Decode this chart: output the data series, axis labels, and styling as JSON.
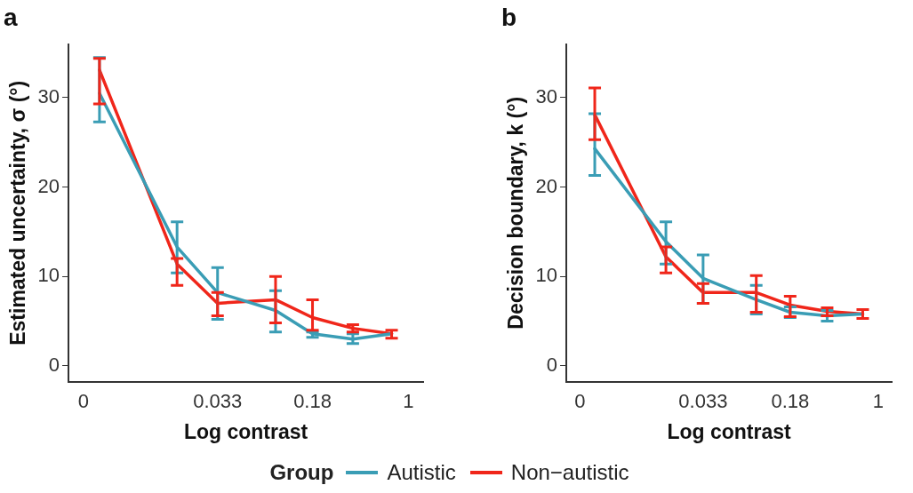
{
  "chart_data": [
    {
      "type": "line",
      "title": "a",
      "xlabel": "Log contrast",
      "ylabel": "Estimated uncertainty, σ (°)",
      "log": "x",
      "xlim": [
        0.0023,
        1.3
      ],
      "xticks": [
        {
          "value": 0.003,
          "label": "0"
        },
        0.033,
        0.18,
        1
      ],
      "ylim": [
        -1.8,
        36
      ],
      "yticks": [
        0,
        10,
        20,
        30
      ],
      "grid": false,
      "marker": "none",
      "line_style": "solid",
      "legend": "bottom",
      "legend_title": "Group",
      "x": [
        0.004,
        0.016,
        0.033,
        0.093,
        0.18,
        0.37,
        0.74
      ],
      "series": [
        {
          "name": "Autistic",
          "color": "#3a9db5",
          "values": [
            30.5,
            13.3,
            8.2,
            6.2,
            3.6,
            3.0,
            3.6
          ],
          "errors": [
            [
              27.3,
              34.5
            ],
            [
              10.4,
              16.1
            ],
            [
              5.2,
              11.0
            ],
            [
              3.8,
              8.4
            ],
            [
              3.2,
              3.8
            ],
            [
              2.5,
              3.6
            ],
            null
          ]
        },
        {
          "name": "Non−autistic",
          "color": "#f0261a",
          "values": [
            33.1,
            11.4,
            7.0,
            7.4,
            5.4,
            4.2,
            3.6
          ],
          "errors": [
            [
              29.3,
              34.4
            ],
            [
              9.0,
              12.0
            ],
            [
              5.6,
              8.2
            ],
            [
              4.8,
              10.0
            ],
            [
              4.0,
              7.4
            ],
            [
              3.8,
              4.6
            ],
            [
              3.1,
              4.0
            ]
          ]
        }
      ]
    },
    {
      "type": "line",
      "title": "b",
      "xlabel": "Log contrast",
      "ylabel": "Decision boundary, k (°)",
      "log": "x",
      "xlim": [
        0.0023,
        1.3
      ],
      "xticks": [
        {
          "value": 0.003,
          "label": "0"
        },
        0.033,
        0.18,
        1
      ],
      "ylim": [
        -1.8,
        36
      ],
      "yticks": [
        0,
        10,
        20,
        30
      ],
      "grid": false,
      "marker": "none",
      "line_style": "solid",
      "x": [
        0.004,
        0.016,
        0.033,
        0.093,
        0.18,
        0.37,
        0.74
      ],
      "series": [
        {
          "color": "#3a9db5",
          "values": [
            24.3,
            13.9,
            9.8,
            7.4,
            6.0,
            5.6,
            5.8
          ],
          "errors": [
            [
              21.3,
              28.2
            ],
            [
              11.4,
              16.1
            ],
            [
              7.0,
              12.4
            ],
            [
              5.8,
              9.0
            ],
            [
              5.4,
              6.6
            ],
            [
              5.0,
              6.2
            ],
            null
          ]
        },
        {
          "color": "#f0261a",
          "values": [
            28.1,
            12.2,
            8.2,
            8.2,
            6.8,
            6.1,
            5.8
          ],
          "errors": [
            [
              25.3,
              31.1
            ],
            [
              10.4,
              13.3
            ],
            [
              7.0,
              9.2
            ],
            [
              6.0,
              10.1
            ],
            [
              5.5,
              7.8
            ],
            [
              5.6,
              6.5
            ],
            [
              5.3,
              6.3
            ]
          ]
        }
      ]
    }
  ]
}
